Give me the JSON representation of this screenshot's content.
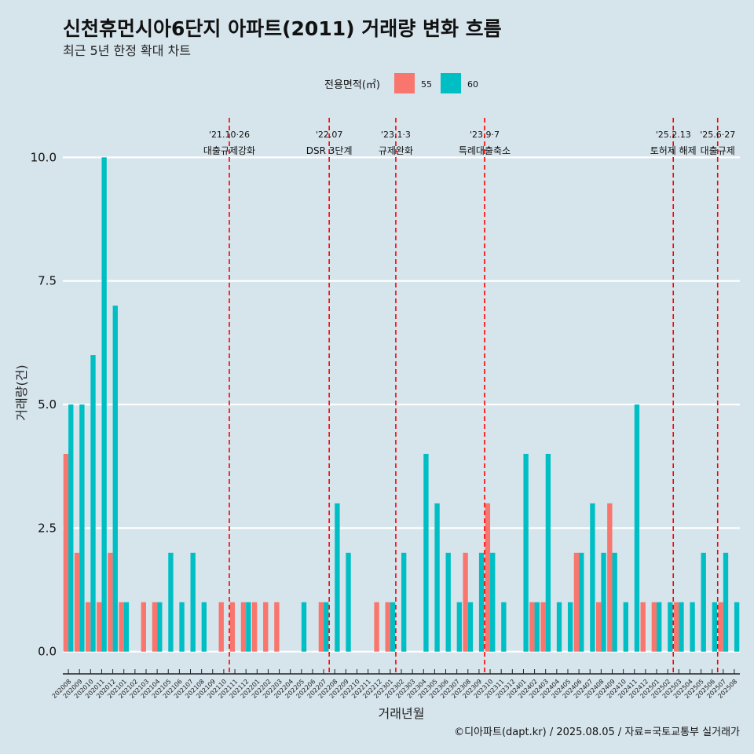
{
  "title": "신천휴먼시아6단지 아파트(2011) 거래량 변화 흐름",
  "subtitle": "최근 5년 한정 확대 차트",
  "caption": "©디아파트(dapt.kr) / 2025.08.05 / 자료=국토교통부 실거래가",
  "colors": {
    "s55": "#f8766d",
    "s60": "#00bfc4",
    "event": "#ff0000",
    "background": "#d6e4ec",
    "grid": "#ffffff"
  },
  "chart_data": {
    "type": "bar",
    "xlabel": "거래년월",
    "ylabel": "거래량(건)",
    "ylim": [
      -0.45,
      10.8
    ],
    "yticks": [
      0,
      2.5,
      5,
      7.5,
      10
    ],
    "ytick_labels": [
      "0.0",
      "2.5",
      "5.0",
      "7.5",
      "10.0"
    ],
    "legend": {
      "title": "전용면적(㎡)",
      "position": "top"
    },
    "categories": [
      "202008",
      "202009",
      "202010",
      "202011",
      "202012",
      "202101",
      "202102",
      "202103",
      "202104",
      "202105",
      "202106",
      "202107",
      "202108",
      "202109",
      "202110",
      "202111",
      "202112",
      "202201",
      "202202",
      "202203",
      "202204",
      "202205",
      "202206",
      "202207",
      "202208",
      "202209",
      "202210",
      "202211",
      "202212",
      "202301",
      "202302",
      "202303",
      "202304",
      "202305",
      "202306",
      "202307",
      "202308",
      "202309",
      "202310",
      "202311",
      "202312",
      "202401",
      "202402",
      "202403",
      "202404",
      "202405",
      "202406",
      "202407",
      "202408",
      "202409",
      "202410",
      "202411",
      "202412",
      "202501",
      "202502",
      "202503",
      "202504",
      "202505",
      "202506",
      "202507",
      "202508"
    ],
    "series": [
      {
        "name": "55",
        "values": [
          4,
          2,
          1,
          1,
          2,
          1,
          0,
          1,
          1,
          0,
          0,
          0,
          0,
          0,
          1,
          1,
          1,
          1,
          1,
          1,
          0,
          0,
          0,
          1,
          0,
          0,
          0,
          0,
          1,
          1,
          0,
          0,
          0,
          0,
          0,
          0,
          2,
          0,
          3,
          0,
          0,
          0,
          1,
          1,
          0,
          0,
          2,
          0,
          1,
          3,
          0,
          0,
          1,
          1,
          0,
          1,
          0,
          0,
          0,
          1,
          0
        ]
      },
      {
        "name": "60",
        "values": [
          5,
          5,
          6,
          10,
          7,
          1,
          0,
          0,
          1,
          2,
          1,
          2,
          1,
          0,
          0,
          0,
          1,
          0,
          0,
          0,
          0,
          1,
          0,
          1,
          3,
          2,
          0,
          0,
          0,
          1,
          2,
          0,
          4,
          3,
          2,
          1,
          1,
          2,
          2,
          1,
          0,
          4,
          1,
          4,
          1,
          1,
          2,
          3,
          2,
          2,
          1,
          5,
          0,
          1,
          1,
          1,
          1,
          2,
          1,
          2,
          1
        ]
      }
    ],
    "events": [
      {
        "date": "'21.10·26",
        "label": "대출규제강화",
        "after": "202110"
      },
      {
        "date": "'22.07",
        "label": "DSR 3단계",
        "after": "202207"
      },
      {
        "date": "'23.1·3",
        "label": "규제완화",
        "after": "202301"
      },
      {
        "date": "'23.9·7",
        "label": "특례대출축소",
        "after": "202309"
      },
      {
        "date": "'25.2.13",
        "label": "토허제 해제",
        "after": "202502"
      },
      {
        "date": "'25.6·27",
        "label": "대출규제",
        "after": "202506"
      }
    ]
  }
}
